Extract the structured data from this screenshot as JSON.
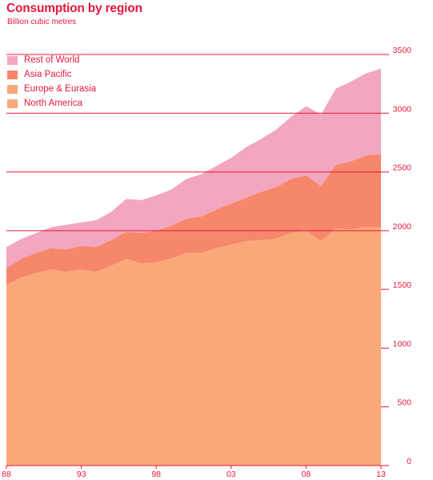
{
  "header": {
    "title": "Consumption by region",
    "subtitle": "Billion cubic metres"
  },
  "colors": {
    "accent": "#e8173c",
    "north_america": "#f9a87a",
    "europe_eurasia": "#f9a87a",
    "asia_pacific": "#f7876a",
    "rest_of_world": "#f2a6bf"
  },
  "chart_data": {
    "type": "area",
    "stacked": true,
    "title": "Consumption by region",
    "subtitle": "Billion cubic metres",
    "x": [
      1988,
      1989,
      1990,
      1991,
      1992,
      1993,
      1994,
      1995,
      1996,
      1997,
      1998,
      1999,
      2000,
      2001,
      2002,
      2003,
      2004,
      2005,
      2006,
      2007,
      2008,
      2009,
      2010,
      2011,
      2012,
      2013
    ],
    "x_tick_labels": [
      "88",
      "93",
      "98",
      "03",
      "08",
      "13"
    ],
    "x_tick_values": [
      1988,
      1993,
      1998,
      2003,
      2008,
      2013
    ],
    "y_ticks": [
      0,
      500,
      1000,
      1500,
      2000,
      2500,
      3000,
      3500
    ],
    "ylim": [
      0,
      3500
    ],
    "xlim": [
      1988,
      2013
    ],
    "grid": "horizontal",
    "legend_position": "top-left",
    "legend_order": [
      "Rest of World",
      "Asia Pacific",
      "Europe & Eurasia",
      "North America"
    ],
    "series": [
      {
        "name": "North America",
        "cumulative_top": [
          1540,
          1600,
          1640,
          1670,
          1650,
          1670,
          1650,
          1700,
          1760,
          1720,
          1730,
          1760,
          1810,
          1810,
          1850,
          1880,
          1910,
          1920,
          1930,
          1980,
          2000,
          1910,
          2020,
          2010,
          2030,
          2030
        ]
      },
      {
        "name": "Europe & Eurasia",
        "cumulative_top": [
          1540,
          1600,
          1640,
          1670,
          1650,
          1670,
          1650,
          1700,
          1760,
          1720,
          1730,
          1760,
          1810,
          1810,
          1850,
          1880,
          1910,
          1920,
          1930,
          1980,
          2000,
          1910,
          2020,
          2010,
          2030,
          2030
        ]
      },
      {
        "name": "Asia Pacific",
        "cumulative_top": [
          1680,
          1760,
          1810,
          1850,
          1840,
          1870,
          1860,
          1920,
          1990,
          1980,
          2000,
          2040,
          2100,
          2120,
          2180,
          2230,
          2280,
          2330,
          2370,
          2440,
          2470,
          2380,
          2560,
          2590,
          2640,
          2650
        ]
      },
      {
        "name": "Rest of World",
        "cumulative_top": [
          1860,
          1930,
          1980,
          2030,
          2050,
          2070,
          2090,
          2160,
          2270,
          2260,
          2300,
          2350,
          2440,
          2480,
          2550,
          2620,
          2710,
          2780,
          2860,
          2970,
          3060,
          2990,
          3210,
          3270,
          3340,
          3380
        ]
      }
    ]
  }
}
